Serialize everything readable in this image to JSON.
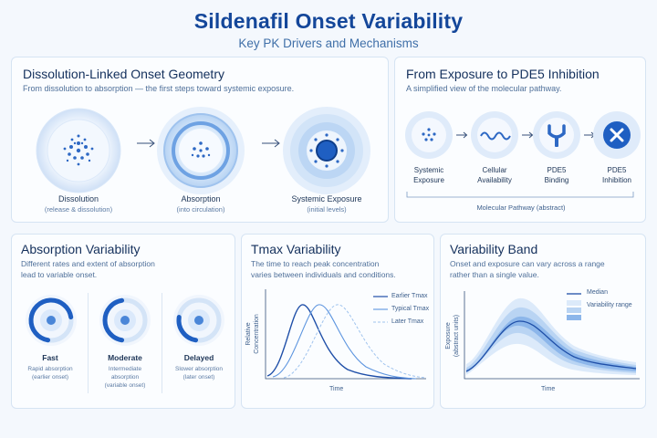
{
  "header": {
    "title": "Sildenafil Onset Variability",
    "subtitle": "Key PK Drivers and Mechanisms"
  },
  "geometry_panel": {
    "title": "Dissolution-Linked Onset Geometry",
    "description": "From dissolution to absorption — the first steps toward systemic exposure.",
    "steps": [
      {
        "label": "Dissolution",
        "sub": "(release & dissolution)"
      },
      {
        "label": "Absorption",
        "sub": "(into circulation)"
      },
      {
        "label": "Systemic Exposure",
        "sub": "(initial levels)"
      }
    ]
  },
  "pde5_panel": {
    "title": "From Exposure to PDE5 Inhibition",
    "description": "A simplified view of the molecular pathway.",
    "steps": [
      {
        "label": "Systemic\nExposure"
      },
      {
        "label": "Cellular\nAvailability"
      },
      {
        "label": "PDE5\nBinding"
      },
      {
        "label": "PDE5\nInhibition"
      }
    ],
    "footer": "Molecular Pathway (abstract)"
  },
  "absorption_panel": {
    "title": "Absorption Variability",
    "description": "Different rates and extent of absorption\nlead to variable onset.",
    "items": [
      {
        "label": "Fast",
        "sub": "Rapid absorption\n(earlier onset)",
        "level": 0.7
      },
      {
        "label": "Moderate",
        "sub": "Intermediate\nabsorption\n(variable onset)",
        "level": 0.45
      },
      {
        "label": "Delayed",
        "sub": "Slower absorption\n(later onset)",
        "level": 0.25
      }
    ]
  },
  "tmax_panel": {
    "title": "Tmax Variability",
    "description": "The time to reach peak concentration\nvaries between individuals and conditions.",
    "ylabel": "Relative\nConcentration",
    "xlabel": "Time",
    "legend": [
      "Earlier Tmax",
      "Typical Tmax",
      "Later Tmax"
    ]
  },
  "band_panel": {
    "title": "Variability Band",
    "description": "Onset and exposure can vary across a range\nrather than a single value.",
    "ylabel": "Exposure\n(abstract units)",
    "xlabel": "Time",
    "legend": [
      "Median",
      "Variability range"
    ]
  },
  "colors": {
    "accent": "#1f5fc2",
    "light": "#9fc3ee",
    "title": "#14479a"
  }
}
